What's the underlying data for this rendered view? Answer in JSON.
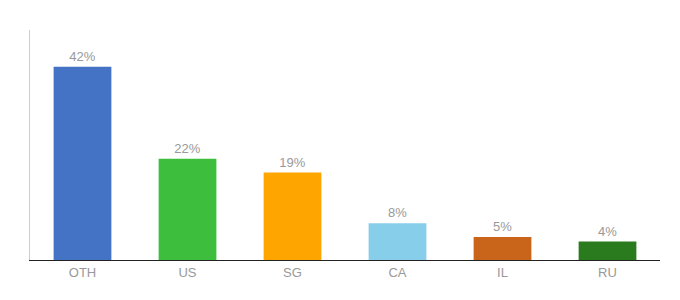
{
  "chart_data": {
    "type": "bar",
    "categories": [
      "OTH",
      "US",
      "SG",
      "CA",
      "IL",
      "RU"
    ],
    "values": [
      42,
      22,
      19,
      8,
      5,
      4
    ],
    "value_labels": [
      "42%",
      "22%",
      "19%",
      "8%",
      "5%",
      "4%"
    ],
    "data_labels": true,
    "colors": [
      "#4472C4",
      "#3DBE3D",
      "#FFA500",
      "#87CEEB",
      "#C8651B",
      "#2A7A1E"
    ],
    "ylim": [
      0,
      50
    ],
    "grid": false,
    "tick_labels": "x"
  }
}
